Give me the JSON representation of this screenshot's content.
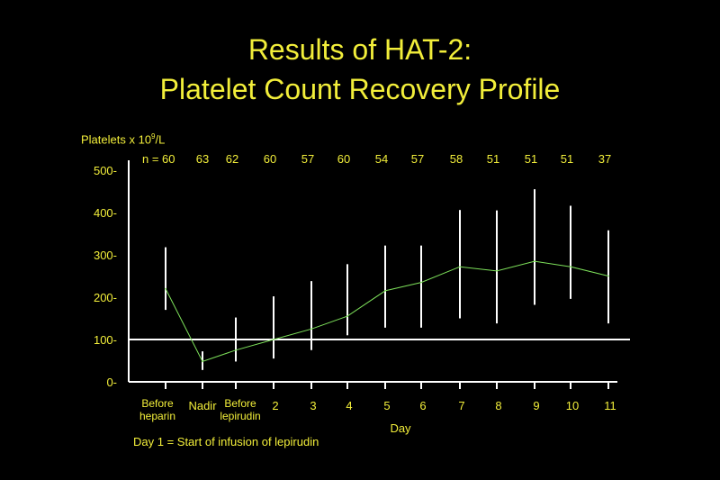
{
  "slide": {
    "title_line1": "Results of HAT-2:",
    "title_line2": "Platelet Count Recovery Profile"
  },
  "chart_data": {
    "type": "line",
    "ylabel_prefix": "Platelets x 10",
    "ylabel_exp": "9",
    "ylabel_suffix": "/L",
    "xlabel": "Day",
    "footnote": "Day 1 = Start of infusion of lepirudin",
    "n_prefix": "n = ",
    "ylim": [
      0,
      500
    ],
    "yticks": [
      {
        "v": 0,
        "label": "0-"
      },
      {
        "v": 100,
        "label": "100-"
      },
      {
        "v": 200,
        "label": "200-"
      },
      {
        "v": 300,
        "label": "300-"
      },
      {
        "v": 400,
        "label": "400-"
      },
      {
        "v": 500,
        "label": "500-"
      }
    ],
    "reference_line": 100,
    "categories": [
      [
        "Before",
        "heparin"
      ],
      [
        "Nadir"
      ],
      [
        "Before",
        "lepirudin"
      ],
      [
        "2"
      ],
      [
        "3"
      ],
      [
        "4"
      ],
      [
        "5"
      ],
      [
        "6"
      ],
      [
        "7"
      ],
      [
        "8"
      ],
      [
        "9"
      ],
      [
        "10"
      ],
      [
        "11"
      ]
    ],
    "n": [
      "60",
      "63",
      "62",
      "60",
      "57",
      "60",
      "54",
      "57",
      "58",
      "51",
      "51",
      "51",
      "37"
    ],
    "series": [
      {
        "values": [
          220,
          48,
          75,
          100,
          125,
          155,
          215,
          235,
          272,
          262,
          285,
          272,
          250
        ],
        "lower": [
          170,
          28,
          48,
          55,
          75,
          110,
          128,
          128,
          150,
          138,
          182,
          196,
          138
        ],
        "upper": [
          318,
          72,
          152,
          202,
          238,
          278,
          322,
          322,
          406,
          405,
          455,
          416,
          358
        ]
      }
    ],
    "colors": {
      "text": "#f2ee3a",
      "line": "#7de05a",
      "errorbar": "#ffffff",
      "axis": "#ffffff"
    }
  }
}
